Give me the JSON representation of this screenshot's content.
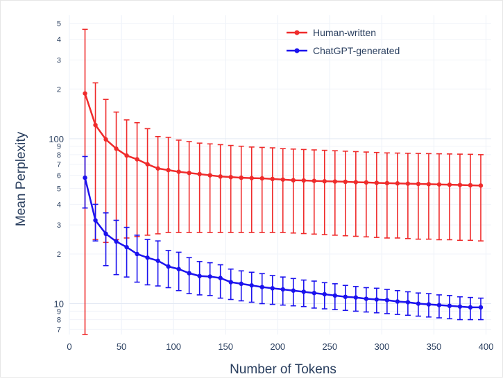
{
  "chart_data": {
    "type": "line",
    "title": "",
    "xlabel": "Number of Tokens",
    "ylabel": "Mean Perplexity",
    "x_scale": "linear",
    "y_scale": "log",
    "xlim": [
      0,
      405
    ],
    "ylim": [
      6.5,
      560
    ],
    "x_ticks": [
      "0",
      "50",
      "100",
      "150",
      "200",
      "250",
      "300",
      "350",
      "400"
    ],
    "y_major_ticks": [
      {
        "value": 10,
        "label": "10"
      },
      {
        "value": 100,
        "label": "100"
      }
    ],
    "y_minor_ticks": [
      {
        "value": 7,
        "label": "7"
      },
      {
        "value": 8,
        "label": "8"
      },
      {
        "value": 9,
        "label": "9"
      },
      {
        "value": 20,
        "label": "2"
      },
      {
        "value": 30,
        "label": "3"
      },
      {
        "value": 40,
        "label": "4"
      },
      {
        "value": 50,
        "label": "5"
      },
      {
        "value": 60,
        "label": "6"
      },
      {
        "value": 70,
        "label": "7"
      },
      {
        "value": 80,
        "label": "8"
      },
      {
        "value": 90,
        "label": "9"
      },
      {
        "value": 200,
        "label": "2"
      },
      {
        "value": 300,
        "label": "3"
      },
      {
        "value": 400,
        "label": "4"
      },
      {
        "value": 500,
        "label": "5"
      }
    ],
    "grid": true,
    "legend_position": "top-right",
    "x": [
      15,
      25,
      35,
      45,
      55,
      65,
      75,
      85,
      95,
      105,
      115,
      125,
      135,
      145,
      155,
      165,
      175,
      185,
      195,
      205,
      215,
      225,
      235,
      245,
      255,
      265,
      275,
      285,
      295,
      305,
      315,
      325,
      335,
      345,
      355,
      365,
      375,
      385,
      395
    ],
    "series": [
      {
        "name": "Human-written",
        "color": "#ef2b2b",
        "values": [
          188,
          121,
          99,
          87,
          79,
          75,
          70,
          66,
          64.5,
          63,
          62,
          61,
          60,
          59,
          58.5,
          58,
          57.7,
          57.5,
          57,
          56.5,
          56,
          55.8,
          55.5,
          55.2,
          55,
          54.8,
          54.5,
          54.3,
          54,
          53.8,
          53.6,
          53.4,
          53.2,
          53,
          52.8,
          52.6,
          52.4,
          52.2,
          52
        ],
        "error_upper": [
          460,
          218,
          173,
          145,
          130,
          125,
          115,
          103,
          102,
          98,
          96,
          94,
          93,
          92,
          91,
          90,
          89,
          88.5,
          88,
          87,
          86.5,
          86,
          85.5,
          85,
          84.5,
          84,
          83.5,
          83,
          82.5,
          82,
          81.8,
          81.6,
          81.4,
          81.2,
          81,
          80.8,
          80.6,
          80.4,
          80
        ],
        "error_lower": [
          6.5,
          24.5,
          23.5,
          24.5,
          25,
          25.5,
          26,
          26.5,
          27,
          27,
          27,
          27,
          27,
          27,
          27,
          27,
          27,
          27,
          27,
          27,
          26.8,
          26.6,
          26.4,
          26.2,
          26,
          25.8,
          25.6,
          25.4,
          25.2,
          25,
          25,
          24.8,
          24.6,
          24.6,
          24.4,
          24.4,
          24.2,
          24.2,
          24
        ]
      },
      {
        "name": "ChatGPT-generated",
        "color": "#1b12ee",
        "values": [
          58,
          32,
          26.5,
          23.8,
          22,
          20,
          19,
          18.2,
          16.8,
          16.2,
          15.3,
          14.7,
          14.6,
          14.3,
          13.5,
          13.2,
          12.9,
          12.6,
          12.4,
          12.2,
          12,
          11.8,
          11.6,
          11.4,
          11.2,
          11,
          10.9,
          10.7,
          10.6,
          10.5,
          10.3,
          10.2,
          10,
          9.9,
          9.8,
          9.7,
          9.6,
          9.5,
          9.5
        ],
        "error_upper": [
          78,
          40,
          35.5,
          32,
          29,
          26,
          24.5,
          24,
          21,
          20.5,
          19,
          18,
          17.7,
          17.2,
          16.2,
          15.8,
          15.5,
          15.2,
          14.8,
          14.5,
          14.2,
          13.9,
          13.7,
          13.4,
          13.2,
          12.9,
          12.7,
          12.5,
          12.4,
          12.2,
          12,
          11.8,
          11.6,
          11.5,
          11.3,
          11.2,
          11,
          10.9,
          10.8
        ],
        "error_lower": [
          38,
          24,
          17,
          15,
          14.5,
          13.5,
          13,
          12.8,
          12.5,
          12,
          11.5,
          11.3,
          11.2,
          10.8,
          10.6,
          10.4,
          10.2,
          10,
          9.9,
          9.8,
          9.7,
          9.6,
          9.4,
          9.3,
          9.2,
          9.1,
          9,
          8.9,
          8.8,
          8.7,
          8.6,
          8.5,
          8.4,
          8.3,
          8.2,
          8.1,
          8,
          8,
          8
        ]
      }
    ]
  }
}
